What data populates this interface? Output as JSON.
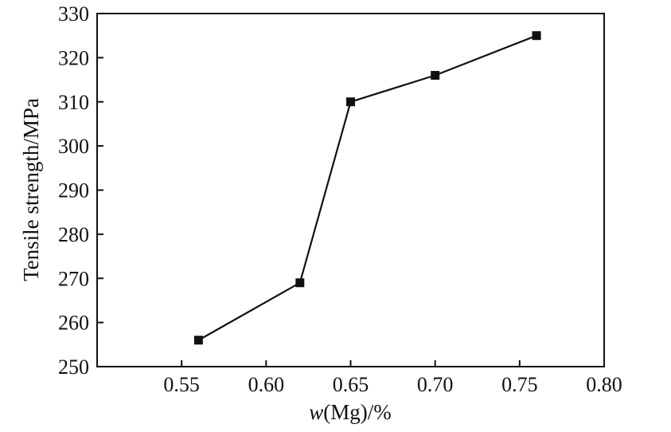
{
  "chart_data": {
    "type": "line",
    "xlabel_italic": "w",
    "xlabel_rest": "(Mg)/%",
    "ylabel": "Tensile strength/MPa",
    "xlim": [
      0.5,
      0.8
    ],
    "ylim": [
      250,
      330
    ],
    "xticks": [
      "0.55",
      "0.60",
      "0.65",
      "0.70",
      "0.75",
      "0.80"
    ],
    "yticks": [
      "250",
      "260",
      "270",
      "280",
      "290",
      "300",
      "310",
      "320",
      "330"
    ],
    "x": [
      0.56,
      0.62,
      0.65,
      0.7,
      0.76
    ],
    "y": [
      256,
      269,
      310,
      316,
      325
    ],
    "marker": "square",
    "color": "#111111",
    "grid": false,
    "legend": false
  }
}
